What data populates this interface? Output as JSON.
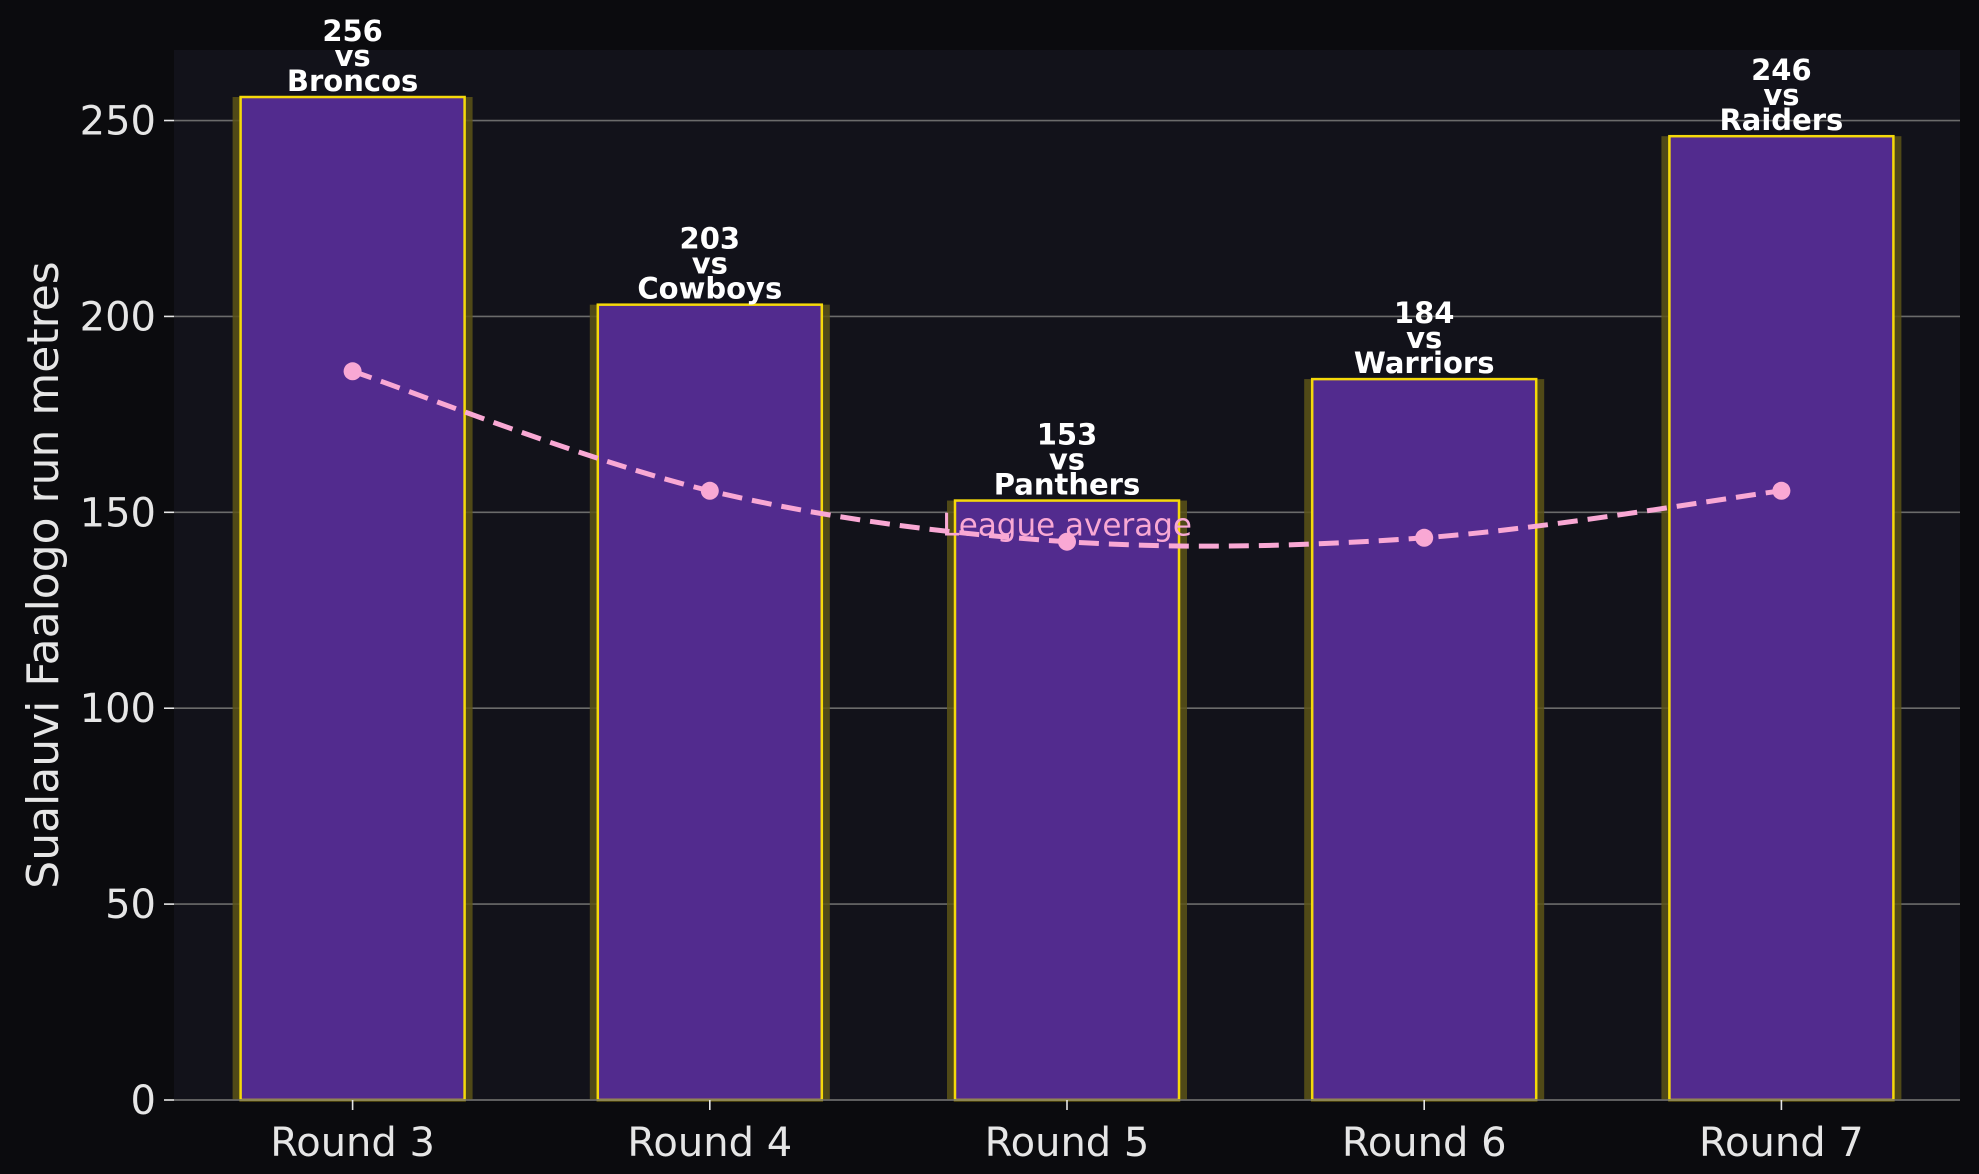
{
  "chart_data": {
    "type": "bar",
    "categories": [
      "Round 3",
      "Round 4",
      "Round 5",
      "Round 6",
      "Round 7"
    ],
    "values": [
      256,
      203,
      153,
      184,
      246
    ],
    "opponents": [
      "Broncos",
      "Cowboys",
      "Panthers",
      "Warriors",
      "Raiders"
    ],
    "vs_text": "vs",
    "ylabel": "Sualauvi Faalogo run metres",
    "xlabel": "",
    "ylim": [
      0,
      268
    ],
    "yticks": [
      0,
      50,
      100,
      150,
      200,
      250
    ],
    "grid": true,
    "overlay": {
      "type": "line",
      "label": "League average",
      "style": "dashed",
      "values": [
        186,
        155.5,
        142.5,
        143.5,
        155.5
      ]
    }
  },
  "colors": {
    "background": "#0b0b0e",
    "plot_area": "#12121a",
    "bar_fill": "#522b8e",
    "bar_edge": "#f5d90a",
    "bar_glow": "#5c5418",
    "line": "#f9a8d4",
    "grid": "#6b6b6b",
    "text": "#e6e6e6"
  }
}
